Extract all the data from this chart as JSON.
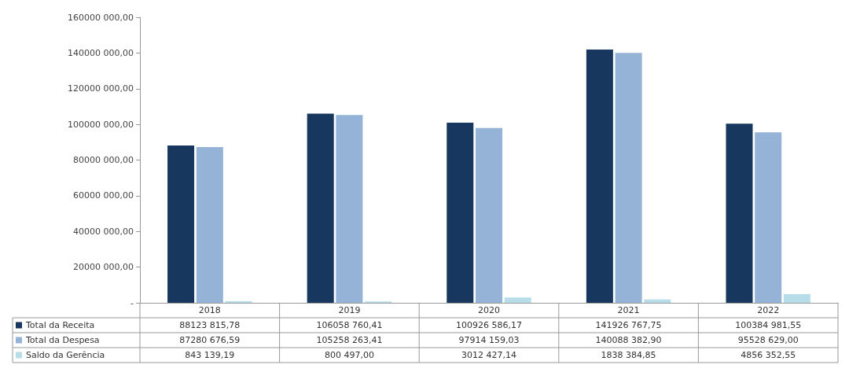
{
  "chart_data": {
    "type": "bar",
    "categories": [
      "2018",
      "2019",
      "2020",
      "2021",
      "2022"
    ],
    "series": [
      {
        "name": "Total da Receita",
        "color": "#17375e",
        "values": [
          88123815.78,
          106058760.41,
          100926586.17,
          141926767.75,
          100384981.55
        ],
        "value_labels": [
          "88123 815,78",
          "106058 760,41",
          "100926 586,17",
          "141926 767,75",
          "100384 981,55"
        ]
      },
      {
        "name": "Total da Despesa",
        "color": "#95b3d7",
        "values": [
          87280676.59,
          105258263.41,
          97914159.03,
          140088382.9,
          95528629.0
        ],
        "value_labels": [
          "87280 676,59",
          "105258 263,41",
          "97914 159,03",
          "140088 382,90",
          "95528 629,00"
        ]
      },
      {
        "name": "Saldo da Gerência",
        "color": "#b7dee8",
        "values": [
          843139.19,
          800497.0,
          3012427.14,
          1838384.85,
          4856352.55
        ],
        "value_labels": [
          "843 139,19",
          "800 497,00",
          "3012 427,14",
          "1838 384,85",
          "4856 352,55"
        ]
      }
    ],
    "ylim": [
      0,
      160000000
    ],
    "yticks": [
      {
        "value": 0,
        "label": "-"
      },
      {
        "value": 20000000,
        "label": "20000 000,00"
      },
      {
        "value": 40000000,
        "label": "40000 000,00"
      },
      {
        "value": 60000000,
        "label": "60000 000,00"
      },
      {
        "value": 80000000,
        "label": "80000 000,00"
      },
      {
        "value": 100000000,
        "label": "100000 000,00"
      },
      {
        "value": 120000000,
        "label": "120000 000,00"
      },
      {
        "value": 140000000,
        "label": "140000 000,00"
      },
      {
        "value": 160000000,
        "label": "160000 000,00"
      }
    ],
    "grid": false,
    "legend": "bottom left"
  }
}
